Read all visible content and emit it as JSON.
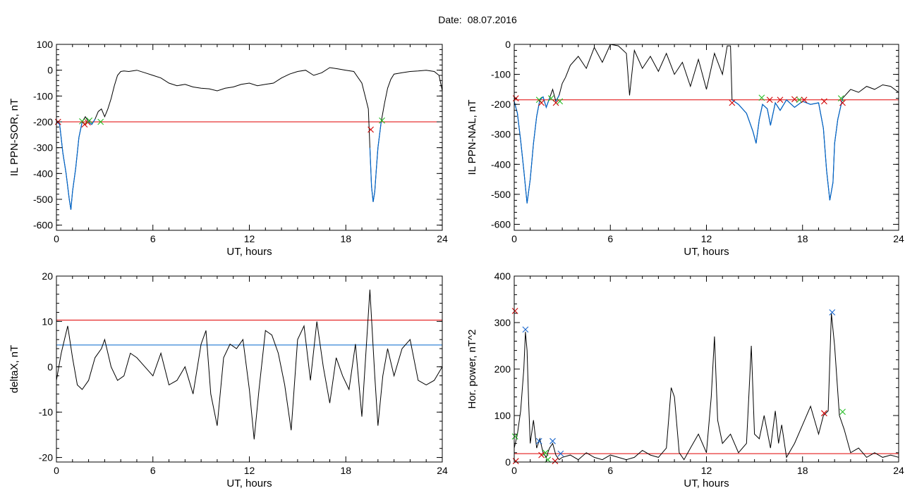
{
  "figure": {
    "date_label": "Date:",
    "date_value": "08.07.2016"
  },
  "colors": {
    "data_line": "#000000",
    "red_line": "#e00000",
    "blue_line": "#0066cc",
    "red_marker": "#d00000",
    "green_marker": "#22bb22",
    "blue_marker": "#1a66cc"
  },
  "chart_data": [
    {
      "type": "line",
      "ylabel": "IL PPN-SOR, nT",
      "xlabel": "UT, hours",
      "xlim": [
        0,
        24
      ],
      "ylim": [
        -620,
        100
      ],
      "xticks": [
        0,
        6,
        12,
        18,
        24
      ],
      "yticks": [
        -600,
        -500,
        -400,
        -300,
        -200,
        -100,
        0,
        100
      ],
      "threshold_red": -200,
      "series": [
        {
          "x": [
            0.0,
            0.2,
            0.4,
            0.6,
            0.8,
            0.9,
            1.0,
            1.2,
            1.4,
            1.6,
            1.8,
            2.0,
            2.2,
            2.4,
            2.6,
            2.8,
            3.0,
            3.2,
            3.4,
            3.6,
            3.8,
            4.0,
            4.2,
            4.5,
            5.0,
            5.5,
            6.0,
            6.5,
            7.0,
            7.5,
            8.0,
            8.5,
            9.0,
            9.5,
            10.0,
            10.5,
            11.0,
            11.5,
            12.0,
            12.5,
            13.0,
            13.5,
            14.0,
            14.5,
            15.0,
            15.5,
            16.0,
            16.5,
            17.0,
            17.5,
            18.0,
            18.5,
            19.0,
            19.2,
            19.4,
            19.5,
            19.6,
            19.7,
            19.8,
            19.9,
            20.0,
            20.2,
            20.4,
            20.6,
            20.8,
            21.0,
            21.5,
            22.0,
            22.5,
            23.0,
            23.5,
            23.8,
            24.0
          ],
          "y": [
            -200,
            -210,
            -320,
            -400,
            -500,
            -540,
            -470,
            -380,
            -260,
            -200,
            -180,
            -200,
            -210,
            -190,
            -160,
            -150,
            -180,
            -150,
            -110,
            -60,
            -20,
            -5,
            -3,
            -5,
            0,
            -10,
            -20,
            -30,
            -50,
            -60,
            -55,
            -65,
            -70,
            -72,
            -80,
            -70,
            -65,
            -55,
            -50,
            -60,
            -55,
            -50,
            -30,
            -15,
            -5,
            0,
            -20,
            -10,
            10,
            5,
            0,
            -5,
            -50,
            -100,
            -150,
            -300,
            -450,
            -510,
            -470,
            -380,
            -300,
            -200,
            -130,
            -70,
            -35,
            -15,
            -10,
            -5,
            -3,
            0,
            -5,
            -20,
            -80
          ]
        }
      ],
      "markers": [
        {
          "x": 0.1,
          "y": -200,
          "color": "red"
        },
        {
          "x": 1.6,
          "y": -198,
          "color": "green"
        },
        {
          "x": 1.75,
          "y": -210,
          "color": "red"
        },
        {
          "x": 1.95,
          "y": -202,
          "color": "red"
        },
        {
          "x": 2.05,
          "y": -195,
          "color": "green"
        },
        {
          "x": 2.75,
          "y": -200,
          "color": "green"
        },
        {
          "x": 19.55,
          "y": -230,
          "color": "red"
        },
        {
          "x": 20.25,
          "y": -195,
          "color": "green"
        }
      ]
    },
    {
      "type": "line",
      "ylabel": "IL PPN-NAL, nT",
      "xlabel": "UT, hours",
      "xlim": [
        0,
        24
      ],
      "ylim": [
        -620,
        0
      ],
      "xticks": [
        0,
        6,
        12,
        18,
        24
      ],
      "yticks": [
        -600,
        -500,
        -400,
        -300,
        -200,
        -100,
        0
      ],
      "threshold_red": -185,
      "series": [
        {
          "x": [
            0.0,
            0.2,
            0.4,
            0.6,
            0.8,
            1.0,
            1.2,
            1.4,
            1.6,
            1.8,
            2.0,
            2.2,
            2.4,
            2.6,
            2.8,
            3.0,
            3.2,
            3.5,
            4.0,
            4.5,
            5.0,
            5.5,
            6.0,
            6.5,
            7.0,
            7.2,
            7.5,
            8.0,
            8.5,
            9.0,
            9.5,
            10.0,
            10.5,
            11.0,
            11.5,
            12.0,
            12.5,
            13.0,
            13.3,
            13.5,
            13.6,
            14.0,
            14.5,
            14.9,
            15.1,
            15.3,
            15.5,
            15.8,
            16.0,
            16.3,
            16.6,
            17.0,
            17.5,
            18.0,
            18.5,
            19.0,
            19.3,
            19.5,
            19.7,
            19.9,
            20.0,
            20.2,
            20.5,
            21.0,
            21.5,
            22.0,
            22.5,
            23.0,
            23.5,
            24.0
          ],
          "y": [
            -190,
            -230,
            -320,
            -420,
            -530,
            -450,
            -330,
            -240,
            -185,
            -175,
            -210,
            -180,
            -150,
            -190,
            -170,
            -130,
            -110,
            -70,
            -40,
            -80,
            -10,
            -60,
            0,
            -5,
            -30,
            -170,
            -20,
            -80,
            -40,
            -90,
            -30,
            -100,
            -60,
            -140,
            -50,
            -150,
            -30,
            -100,
            -5,
            -5,
            -185,
            -200,
            -230,
            -290,
            -330,
            -250,
            -200,
            -215,
            -270,
            -195,
            -220,
            -185,
            -210,
            -190,
            -200,
            -195,
            -280,
            -420,
            -520,
            -460,
            -330,
            -250,
            -180,
            -150,
            -160,
            -140,
            -150,
            -135,
            -140,
            -160
          ]
        }
      ],
      "markers": [
        {
          "x": 0.1,
          "y": -180,
          "color": "red"
        },
        {
          "x": 1.55,
          "y": -185,
          "color": "green"
        },
        {
          "x": 1.7,
          "y": -195,
          "color": "red"
        },
        {
          "x": 2.3,
          "y": -180,
          "color": "green"
        },
        {
          "x": 2.6,
          "y": -195,
          "color": "red"
        },
        {
          "x": 2.85,
          "y": -190,
          "color": "green"
        },
        {
          "x": 13.6,
          "y": -195,
          "color": "red"
        },
        {
          "x": 15.45,
          "y": -178,
          "color": "green"
        },
        {
          "x": 15.95,
          "y": -185,
          "color": "red"
        },
        {
          "x": 16.6,
          "y": -185,
          "color": "red"
        },
        {
          "x": 17.5,
          "y": -183,
          "color": "red"
        },
        {
          "x": 17.8,
          "y": -185,
          "color": "green"
        },
        {
          "x": 18.1,
          "y": -185,
          "color": "red"
        },
        {
          "x": 19.35,
          "y": -190,
          "color": "red"
        },
        {
          "x": 20.4,
          "y": -180,
          "color": "green"
        },
        {
          "x": 20.5,
          "y": -195,
          "color": "red"
        }
      ]
    },
    {
      "type": "line",
      "ylabel": "deltaX, nT",
      "xlabel": "UT, hours",
      "xlim": [
        0,
        24
      ],
      "ylim": [
        -21,
        20
      ],
      "xticks": [
        0,
        6,
        12,
        18,
        24
      ],
      "yticks": [
        -20,
        -10,
        0,
        10,
        20
      ],
      "threshold_red": 10.3,
      "threshold_blue": 4.8,
      "series": [
        {
          "x": [
            0.0,
            0.3,
            0.7,
            1.0,
            1.3,
            1.6,
            2.0,
            2.4,
            2.8,
            3.0,
            3.4,
            3.8,
            4.2,
            4.6,
            5.0,
            5.5,
            6.0,
            6.5,
            7.0,
            7.5,
            8.0,
            8.5,
            9.0,
            9.3,
            9.6,
            10.0,
            10.4,
            10.8,
            11.2,
            11.6,
            12.0,
            12.3,
            12.6,
            13.0,
            13.4,
            13.8,
            14.2,
            14.6,
            15.0,
            15.4,
            15.8,
            16.2,
            16.6,
            17.0,
            17.4,
            17.8,
            18.2,
            18.6,
            19.0,
            19.5,
            19.8,
            20.0,
            20.3,
            20.6,
            21.0,
            21.5,
            22.0,
            22.5,
            23.0,
            23.5,
            24.0
          ],
          "y": [
            -3,
            3,
            9,
            2,
            -4,
            -5,
            -3,
            2,
            4,
            6,
            0,
            -3,
            -2,
            3,
            2,
            0,
            -2,
            3,
            -4,
            -3,
            0,
            -6,
            5,
            8,
            -6,
            -13,
            2,
            5,
            4,
            6,
            -5,
            -16,
            -5,
            8,
            7,
            3,
            -4,
            -14,
            6,
            9,
            -3,
            10,
            0,
            -8,
            2,
            -2,
            -5,
            5,
            -11,
            17,
            -2,
            -13,
            -2,
            4,
            -2,
            4,
            6,
            -3,
            -4,
            -3,
            0
          ]
        }
      ],
      "markers": []
    },
    {
      "type": "line",
      "ylabel": "Hor. power, nT^2",
      "xlabel": "UT, hours",
      "xlim": [
        0,
        24
      ],
      "ylim": [
        0,
        400
      ],
      "xticks": [
        0,
        6,
        12,
        18,
        24
      ],
      "yticks": [
        0,
        100,
        200,
        300,
        400
      ],
      "threshold_red": 18,
      "series": [
        {
          "x": [
            0.0,
            0.2,
            0.4,
            0.6,
            0.7,
            0.8,
            0.9,
            1.0,
            1.2,
            1.4,
            1.6,
            1.8,
            2.0,
            2.2,
            2.4,
            2.6,
            2.8,
            3.0,
            3.5,
            4.0,
            4.5,
            5.0,
            5.5,
            6.0,
            6.5,
            7.0,
            7.5,
            8.0,
            8.5,
            9.0,
            9.5,
            9.8,
            10.0,
            10.3,
            10.6,
            11.0,
            11.5,
            12.0,
            12.3,
            12.5,
            12.7,
            13.0,
            13.5,
            14.0,
            14.5,
            14.8,
            15.0,
            15.3,
            15.6,
            16.0,
            16.3,
            16.5,
            16.7,
            17.0,
            17.5,
            18.0,
            18.5,
            19.0,
            19.3,
            19.6,
            19.8,
            20.0,
            20.3,
            20.6,
            21.0,
            21.5,
            22.0,
            22.5,
            23.0,
            23.5,
            24.0
          ],
          "y": [
            30,
            60,
            110,
            200,
            280,
            240,
            130,
            40,
            90,
            30,
            50,
            20,
            10,
            30,
            40,
            15,
            5,
            10,
            15,
            5,
            20,
            10,
            5,
            15,
            10,
            5,
            10,
            25,
            15,
            10,
            30,
            160,
            140,
            20,
            5,
            30,
            60,
            20,
            140,
            270,
            90,
            40,
            60,
            20,
            40,
            250,
            60,
            50,
            100,
            30,
            110,
            40,
            80,
            10,
            40,
            80,
            120,
            60,
            100,
            110,
            320,
            250,
            100,
            70,
            20,
            30,
            10,
            20,
            10,
            15,
            10
          ]
        }
      ],
      "markers": [
        {
          "x": 0.05,
          "y": 325,
          "color": "red"
        },
        {
          "x": 0.05,
          "y": 55,
          "color": "green"
        },
        {
          "x": 0.1,
          "y": 2,
          "color": "red"
        },
        {
          "x": 0.7,
          "y": 285,
          "color": "blue"
        },
        {
          "x": 1.55,
          "y": 45,
          "color": "blue"
        },
        {
          "x": 1.7,
          "y": 15,
          "color": "red"
        },
        {
          "x": 1.95,
          "y": 20,
          "color": "green"
        },
        {
          "x": 2.1,
          "y": 5,
          "color": "green"
        },
        {
          "x": 2.4,
          "y": 45,
          "color": "blue"
        },
        {
          "x": 2.55,
          "y": 2,
          "color": "red"
        },
        {
          "x": 2.9,
          "y": 18,
          "color": "blue"
        },
        {
          "x": 19.35,
          "y": 105,
          "color": "red"
        },
        {
          "x": 19.85,
          "y": 322,
          "color": "blue"
        },
        {
          "x": 20.5,
          "y": 108,
          "color": "green"
        }
      ]
    }
  ]
}
